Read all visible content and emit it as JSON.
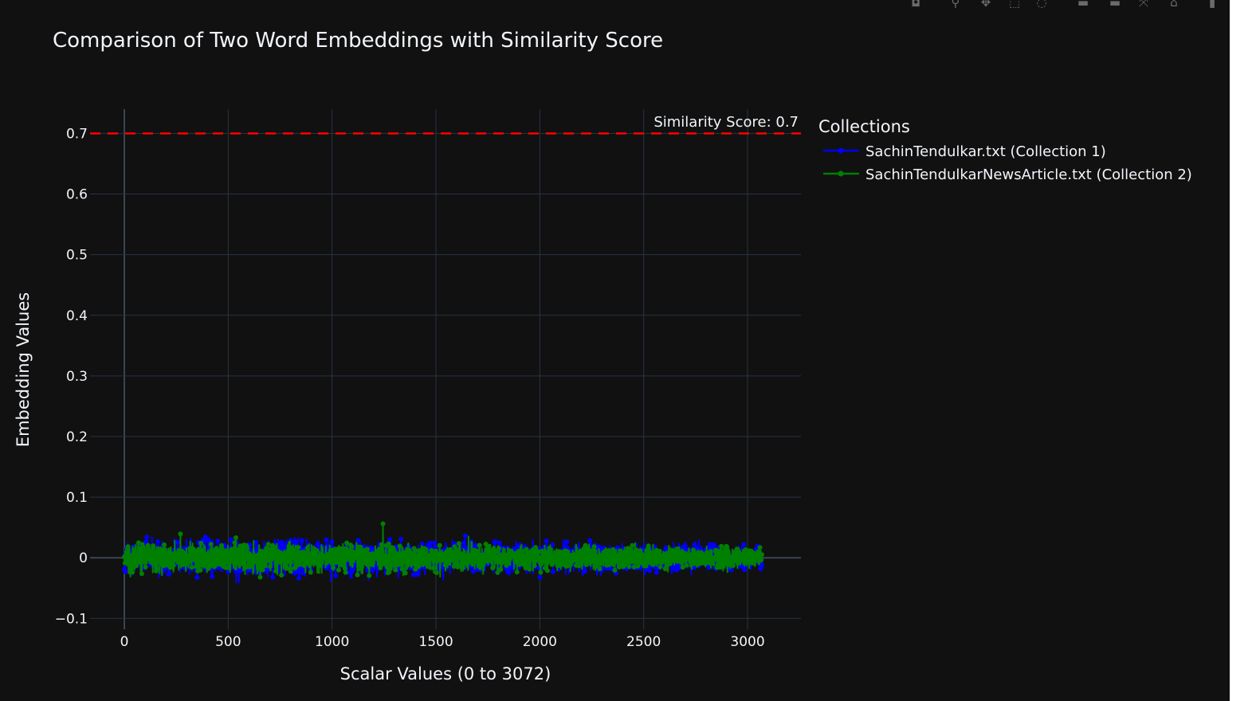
{
  "modebar": {
    "buttons": [
      {
        "name": "camera-icon",
        "glyph": "◘"
      },
      {
        "name": "zoom-icon",
        "glyph": "⚲"
      },
      {
        "name": "pan-icon",
        "glyph": "✥"
      },
      {
        "name": "box-select-icon",
        "glyph": "⬚"
      },
      {
        "name": "lasso-select-icon",
        "glyph": "◌"
      },
      {
        "name": "zoom-in-icon",
        "glyph": "▬"
      },
      {
        "name": "zoom-out-icon",
        "glyph": "▬"
      },
      {
        "name": "autoscale-icon",
        "glyph": "⤧"
      },
      {
        "name": "reset-axes-icon",
        "glyph": "⌂"
      },
      {
        "name": "plotly-logo-icon",
        "glyph": "▮"
      }
    ]
  },
  "colors": {
    "background": "#111111",
    "grid": "#283442",
    "zeroline": "#3b4554",
    "text": "#f2f5fa",
    "series1": "#0000ff",
    "series2": "#008000",
    "threshold": "#ff0000"
  },
  "chart_data": {
    "type": "scatter",
    "title": "Comparison of Two Word Embeddings with Similarity Score",
    "xlabel": "Scalar Values (0 to 3072)",
    "ylabel": "Embedding Values",
    "xlim": [
      -165,
      3257
    ],
    "ylim": [
      -0.118,
      0.74
    ],
    "xticks": [
      0,
      500,
      1000,
      1500,
      2000,
      2500,
      3000
    ],
    "xtick_labels": [
      "0",
      "500",
      "1000",
      "1500",
      "2000",
      "2500",
      "3000"
    ],
    "yticks": [
      -0.1,
      0,
      0.1,
      0.2,
      0.3,
      0.4,
      0.5,
      0.6,
      0.7
    ],
    "ytick_labels": [
      "−0.1",
      "0",
      "0.1",
      "0.2",
      "0.3",
      "0.4",
      "0.5",
      "0.6",
      "0.7"
    ],
    "grid": true,
    "mode": "lines+markers",
    "legend": {
      "title": "Collections",
      "placement": "right-top",
      "entries": [
        "SachinTendulkar.txt (Collection 1)",
        "SachinTendulkarNewsArticle.txt (Collection 2)"
      ]
    },
    "series": [
      {
        "name": "SachinTendulkar.txt (Collection 1)",
        "color": "#0000ff",
        "n_points": 3072,
        "x_range": [
          0,
          3071
        ],
        "observed_value_range": [
          -0.07,
          0.08
        ],
        "typical_spread": [
          -0.045,
          0.045
        ]
      },
      {
        "name": "SachinTendulkarNewsArticle.txt (Collection 2)",
        "color": "#008000",
        "n_points": 3072,
        "x_range": [
          0,
          3071
        ],
        "observed_value_range": [
          -0.075,
          0.082
        ],
        "typical_spread": [
          -0.035,
          0.04
        ]
      }
    ],
    "threshold": {
      "y": 0.7,
      "x_range": [
        -165,
        3257
      ],
      "style": "dashed",
      "color": "#ff0000",
      "annotation": "Similarity Score: 0.7"
    }
  }
}
